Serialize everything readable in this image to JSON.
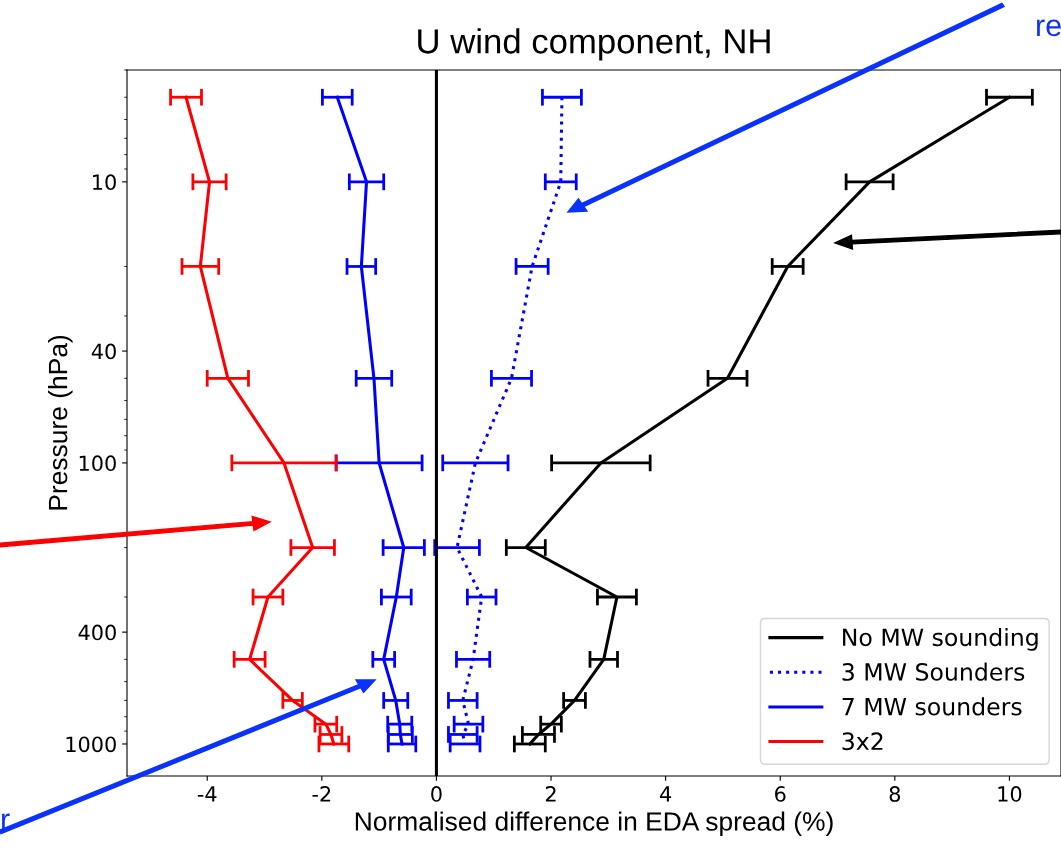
{
  "chart_data": {
    "type": "line",
    "title": "U wind component, NH",
    "xlabel": "Normalised difference in EDA spread (%)",
    "ylabel": "Pressure (hPa)",
    "series": [
      {
        "name": "No MW sounding",
        "color": "#000000",
        "line_style": "solid",
        "x": [
          10.0,
          7.56,
          6.13,
          5.08,
          2.87,
          1.56,
          3.15,
          2.92,
          2.41,
          2.0,
          1.78,
          1.63
        ],
        "values": [
          5,
          10,
          20,
          50,
          100,
          200,
          300,
          500,
          700,
          850,
          925,
          1000
        ],
        "xerrors": [
          0.4,
          0.41,
          0.27,
          0.34,
          0.86,
          0.34,
          0.34,
          0.24,
          0.19,
          0.18,
          0.28,
          0.27
        ]
      },
      {
        "name": "3 MW Sounders",
        "color": "#0000ff",
        "line_style": "dotted",
        "x": [
          2.19,
          2.17,
          1.67,
          1.31,
          0.68,
          0.36,
          0.79,
          0.64,
          0.46,
          0.56,
          0.46,
          0.5
        ],
        "values": [
          5,
          10,
          20,
          50,
          100,
          200,
          300,
          500,
          700,
          850,
          925,
          1000
        ],
        "xerrors": [
          0.34,
          0.27,
          0.28,
          0.35,
          0.57,
          0.39,
          0.25,
          0.29,
          0.25,
          0.25,
          0.25,
          0.26
        ]
      },
      {
        "name": "7 MW sounders",
        "color": "#0000ff",
        "line_style": "solid",
        "x": [
          -1.73,
          -1.22,
          -1.31,
          -1.09,
          -1.0,
          -0.57,
          -0.7,
          -0.92,
          -0.71,
          -0.64,
          -0.63,
          -0.6
        ],
        "values": [
          5,
          10,
          20,
          50,
          100,
          200,
          300,
          500,
          700,
          850,
          925,
          1000
        ],
        "xerrors": [
          0.26,
          0.3,
          0.25,
          0.31,
          0.75,
          0.36,
          0.26,
          0.19,
          0.21,
          0.21,
          0.21,
          0.24
        ]
      },
      {
        "name": "3x2",
        "color": "#ff0000",
        "line_style": "solid",
        "x": [
          -4.37,
          -3.96,
          -4.12,
          -3.64,
          -2.66,
          -2.16,
          -2.94,
          -3.26,
          -2.51,
          -1.93,
          -1.84,
          -1.79
        ],
        "values": [
          5,
          10,
          20,
          50,
          100,
          200,
          300,
          500,
          700,
          850,
          925,
          1000
        ],
        "xerrors": [
          0.27,
          0.29,
          0.32,
          0.36,
          0.91,
          0.38,
          0.26,
          0.27,
          0.17,
          0.19,
          0.19,
          0.26
        ]
      }
    ],
    "xlim": [
      -5.4,
      10.9
    ],
    "xticks": [
      -4,
      -2,
      0,
      2,
      4,
      6,
      8,
      10
    ],
    "ylim": [
      1300,
      4
    ],
    "yticks": [
      10,
      40,
      100,
      400,
      1000
    ],
    "log": "y",
    "ref_lines": [
      {
        "axis": "x",
        "value": 0,
        "color": "#000000"
      }
    ],
    "annotations": [
      "re",
      "r"
    ],
    "legend": "bottom right",
    "grid": false
  }
}
